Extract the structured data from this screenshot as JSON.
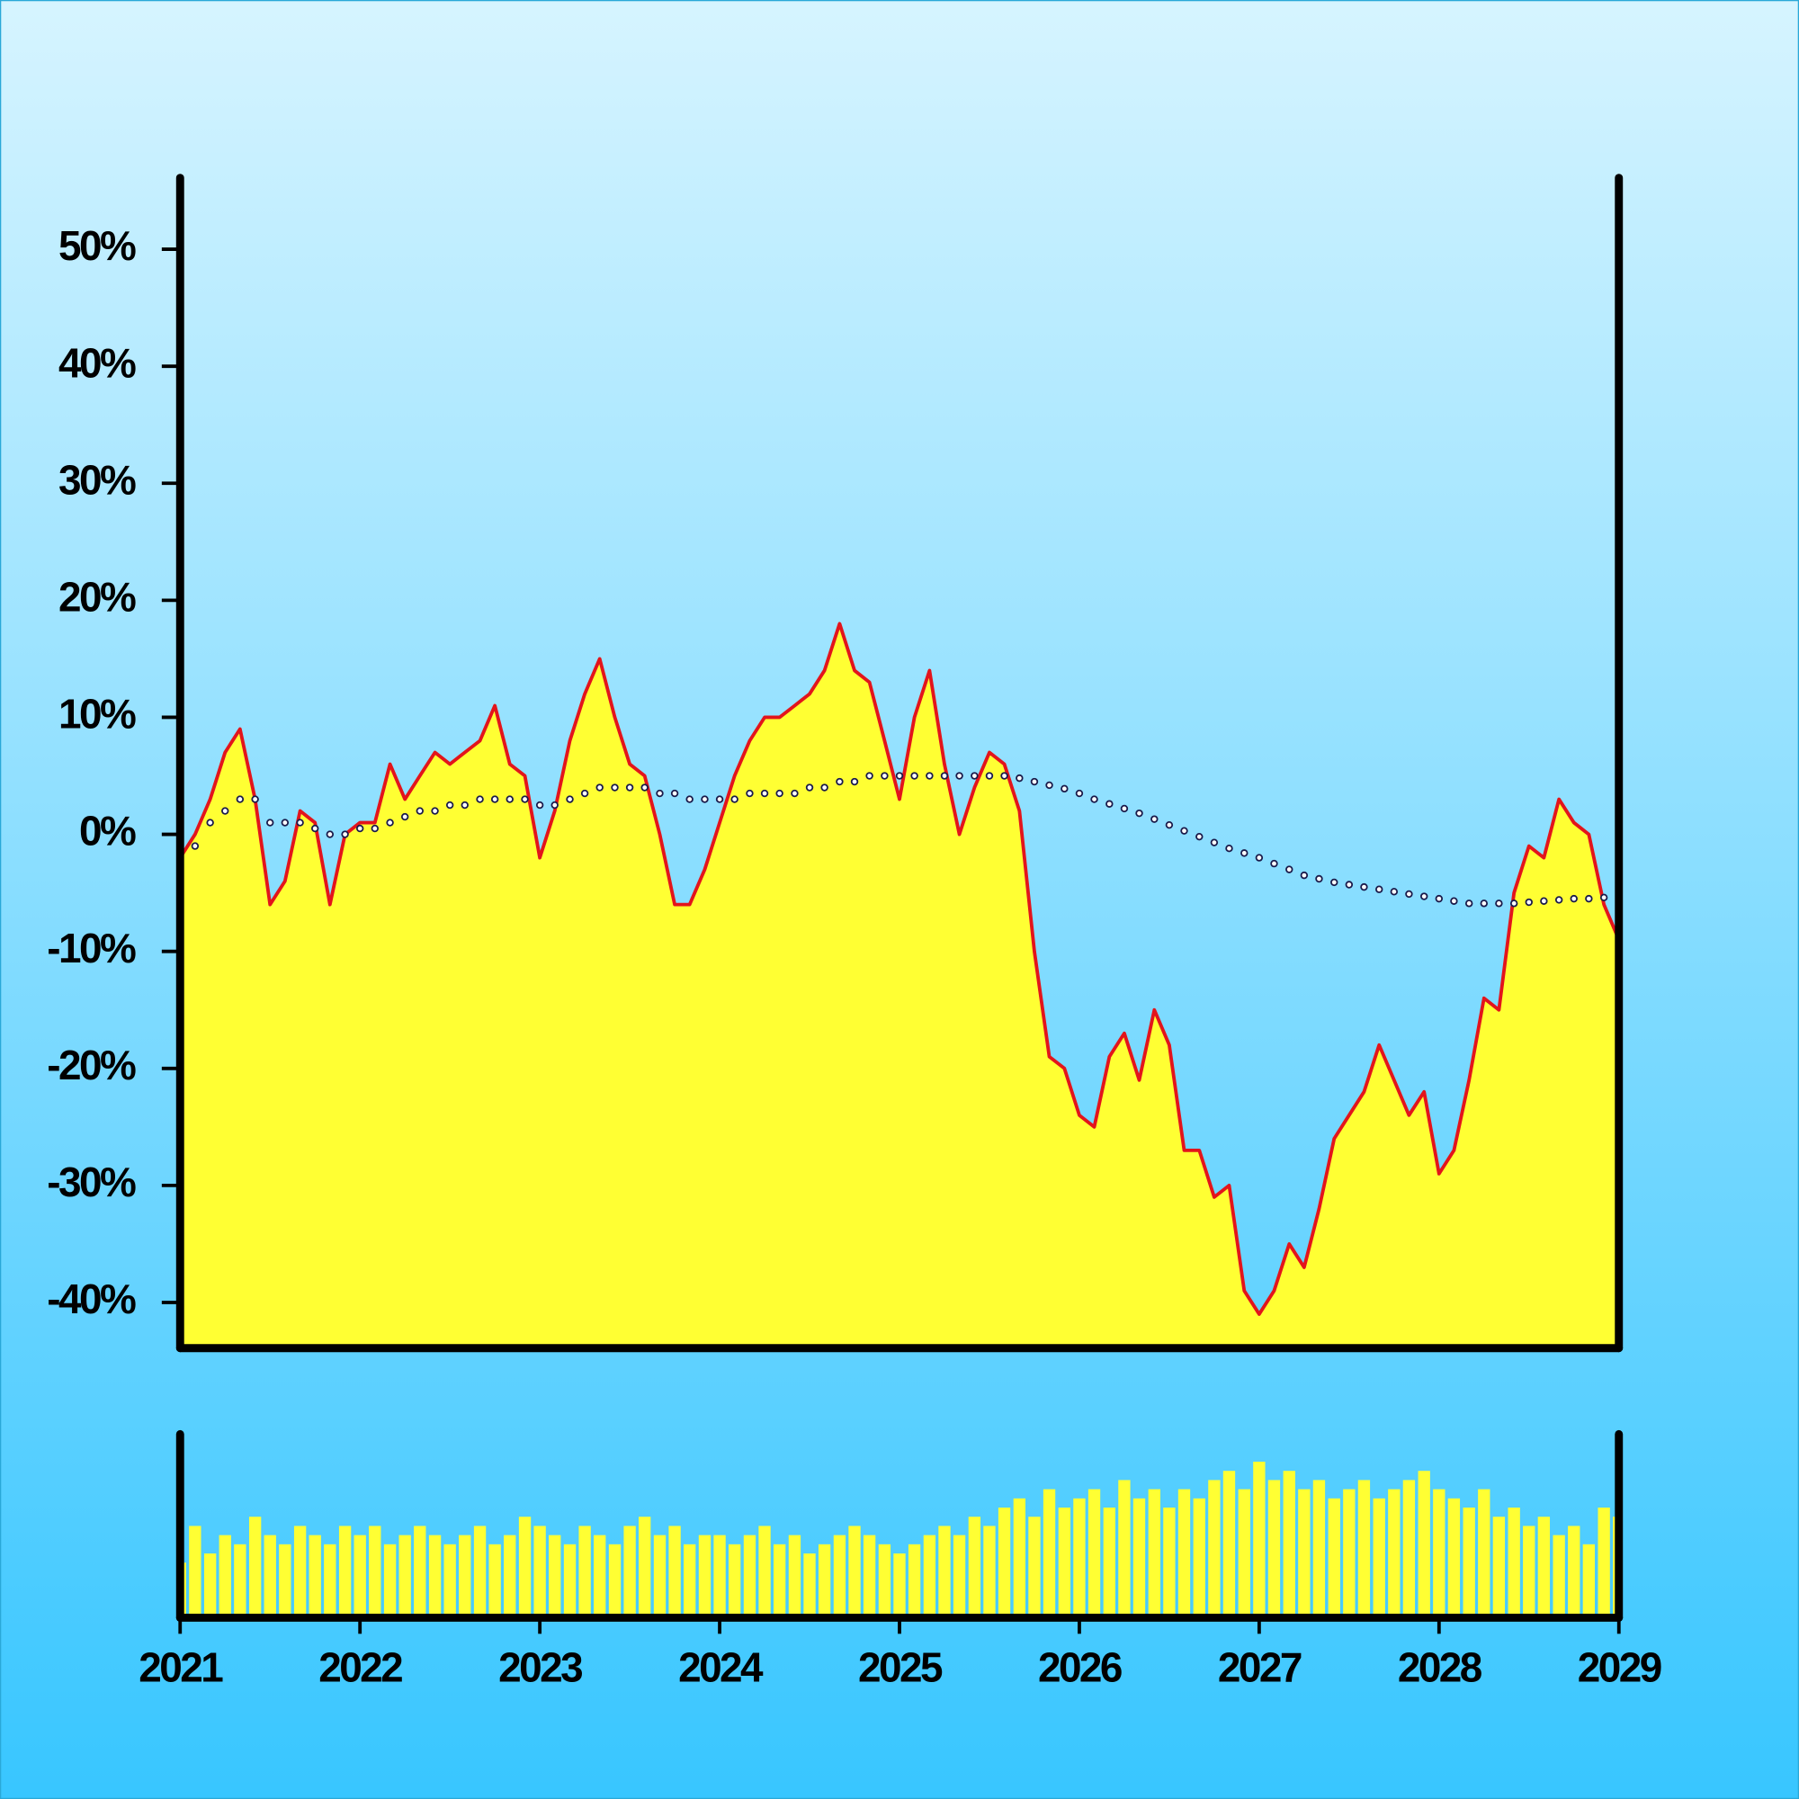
{
  "chart_data": [
    {
      "type": "line",
      "x": [
        2021,
        2021.083,
        2021.167,
        2021.25,
        2021.333,
        2021.417,
        2021.5,
        2021.583,
        2021.667,
        2021.75,
        2021.833,
        2021.917,
        2022,
        2022.083,
        2022.167,
        2022.25,
        2022.333,
        2022.417,
        2022.5,
        2022.583,
        2022.667,
        2022.75,
        2022.833,
        2022.917,
        2023,
        2023.083,
        2023.167,
        2023.25,
        2023.333,
        2023.417,
        2023.5,
        2023.583,
        2023.667,
        2023.75,
        2023.833,
        2023.917,
        2024,
        2024.083,
        2024.167,
        2024.25,
        2024.333,
        2024.417,
        2024.5,
        2024.583,
        2024.667,
        2024.75,
        2024.833,
        2024.917,
        2025,
        2025.083,
        2025.167,
        2025.25,
        2025.333,
        2025.417,
        2025.5,
        2025.583,
        2025.667,
        2025.75,
        2025.833,
        2025.917,
        2026,
        2026.083,
        2026.167,
        2026.25,
        2026.333,
        2026.417,
        2026.5,
        2026.583,
        2026.667,
        2026.75,
        2026.833,
        2026.917,
        2027,
        2027.083,
        2027.167,
        2027.25,
        2027.333,
        2027.417,
        2027.5,
        2027.583,
        2027.667,
        2027.75,
        2027.833,
        2027.917,
        2028,
        2028.083,
        2028.167,
        2028.25,
        2028.333,
        2028.417,
        2028.5,
        2028.583,
        2028.667,
        2028.75,
        2028.833,
        2028.917,
        2029
      ],
      "xlim": [
        2021,
        2029
      ],
      "ylim": [
        -43.9,
        56.1
      ],
      "yticks": [
        {
          "value": 50,
          "label": "50%"
        },
        {
          "value": 40,
          "label": "40%"
        },
        {
          "value": 30,
          "label": "30%"
        },
        {
          "value": 20,
          "label": "20%"
        },
        {
          "value": 10,
          "label": "10%"
        },
        {
          "value": 0,
          "label": "0%"
        },
        {
          "value": -10,
          "label": "-10%"
        },
        {
          "value": -20,
          "label": "-20%"
        },
        {
          "value": -30,
          "label": "-30%"
        },
        {
          "value": -40,
          "label": "-40%"
        }
      ],
      "series": [
        {
          "color": "#e3141b",
          "fill": "#ffff33",
          "values": [
            -2,
            0,
            3,
            7,
            9,
            3,
            -6,
            -4,
            2,
            1,
            -6,
            0,
            1,
            1,
            6,
            3,
            5,
            7,
            6,
            7,
            8,
            11,
            6,
            5,
            -2,
            2,
            8,
            12,
            15,
            10,
            6,
            5,
            0,
            -6,
            -6,
            -3,
            1,
            5,
            8,
            10,
            10,
            11,
            12,
            14,
            18,
            14,
            13,
            8,
            3,
            10,
            14,
            6,
            0,
            4,
            7,
            6,
            2,
            -10,
            -19,
            -20,
            -24,
            -25,
            -19,
            -17,
            -21,
            -15,
            -18,
            -27,
            -27,
            -31,
            -30,
            -39,
            -41,
            -39,
            -35,
            -37,
            -32,
            -26,
            -24,
            -22,
            -18,
            -21,
            -24,
            -22,
            -29,
            -27,
            -21,
            -14,
            -15,
            -5,
            -1,
            -2,
            3,
            1,
            0,
            -6,
            -9
          ]
        },
        {
          "color": "#1a1a4a",
          "style": "dots",
          "values": [
            -2,
            -1,
            1,
            2,
            3,
            3,
            1,
            1,
            1,
            0.5,
            0,
            0,
            0.5,
            0.5,
            1,
            1.5,
            2,
            2,
            2.5,
            2.5,
            3,
            3,
            3,
            3,
            2.5,
            2.5,
            3,
            3.5,
            4,
            4,
            4,
            4,
            3.5,
            3.5,
            3,
            3,
            3,
            3,
            3.5,
            3.5,
            3.5,
            3.5,
            4,
            4,
            4.5,
            4.5,
            5,
            5,
            5,
            5,
            5,
            5,
            5,
            5,
            5,
            5,
            4.8,
            4.5,
            4.2,
            3.9,
            3.5,
            3,
            2.6,
            2.2,
            1.8,
            1.3,
            0.8,
            0.3,
            -0.2,
            -0.7,
            -1.2,
            -1.6,
            -2,
            -2.5,
            -3,
            -3.5,
            -3.8,
            -4.1,
            -4.3,
            -4.5,
            -4.7,
            -4.9,
            -5.1,
            -5.3,
            -5.5,
            -5.7,
            -5.9,
            -5.9,
            -5.9,
            -5.9,
            -5.8,
            -5.7,
            -5.6,
            -5.5,
            -5.5,
            -5.4,
            -5.6
          ]
        }
      ]
    },
    {
      "type": "bar",
      "x": [
        2021,
        2021.083,
        2021.167,
        2021.25,
        2021.333,
        2021.417,
        2021.5,
        2021.583,
        2021.667,
        2021.75,
        2021.833,
        2021.917,
        2022,
        2022.083,
        2022.167,
        2022.25,
        2022.333,
        2022.417,
        2022.5,
        2022.583,
        2022.667,
        2022.75,
        2022.833,
        2022.917,
        2023,
        2023.083,
        2023.167,
        2023.25,
        2023.333,
        2023.417,
        2023.5,
        2023.583,
        2023.667,
        2023.75,
        2023.833,
        2023.917,
        2024,
        2024.083,
        2024.167,
        2024.25,
        2024.333,
        2024.417,
        2024.5,
        2024.583,
        2024.667,
        2024.75,
        2024.833,
        2024.917,
        2025,
        2025.083,
        2025.167,
        2025.25,
        2025.333,
        2025.417,
        2025.5,
        2025.583,
        2025.667,
        2025.75,
        2025.833,
        2025.917,
        2026,
        2026.083,
        2026.167,
        2026.25,
        2026.333,
        2026.417,
        2026.5,
        2026.583,
        2026.667,
        2026.75,
        2026.833,
        2026.917,
        2027,
        2027.083,
        2027.167,
        2027.25,
        2027.333,
        2027.417,
        2027.5,
        2027.583,
        2027.667,
        2027.75,
        2027.833,
        2027.917,
        2028,
        2028.083,
        2028.167,
        2028.25,
        2028.333,
        2028.417,
        2028.5,
        2028.583,
        2028.667,
        2028.75,
        2028.833,
        2028.917,
        2029
      ],
      "xlim": [
        2021,
        2029
      ],
      "xticks": [
        2021,
        2022,
        2023,
        2024,
        2025,
        2026,
        2027,
        2028,
        2029
      ],
      "ylim": [
        0,
        100
      ],
      "color": "#ffff33",
      "values": [
        30,
        50,
        35,
        45,
        40,
        55,
        45,
        40,
        50,
        45,
        40,
        50,
        45,
        50,
        40,
        45,
        50,
        45,
        40,
        45,
        50,
        40,
        45,
        55,
        50,
        45,
        40,
        50,
        45,
        40,
        50,
        55,
        45,
        50,
        40,
        45,
        45,
        40,
        45,
        50,
        40,
        45,
        35,
        40,
        45,
        50,
        45,
        40,
        35,
        40,
        45,
        50,
        45,
        55,
        50,
        60,
        65,
        55,
        70,
        60,
        65,
        70,
        60,
        75,
        65,
        70,
        60,
        70,
        65,
        75,
        80,
        70,
        85,
        75,
        80,
        70,
        75,
        65,
        70,
        75,
        65,
        70,
        75,
        80,
        70,
        65,
        60,
        70,
        55,
        60,
        50,
        55,
        45,
        50,
        40,
        60,
        55
      ]
    }
  ]
}
